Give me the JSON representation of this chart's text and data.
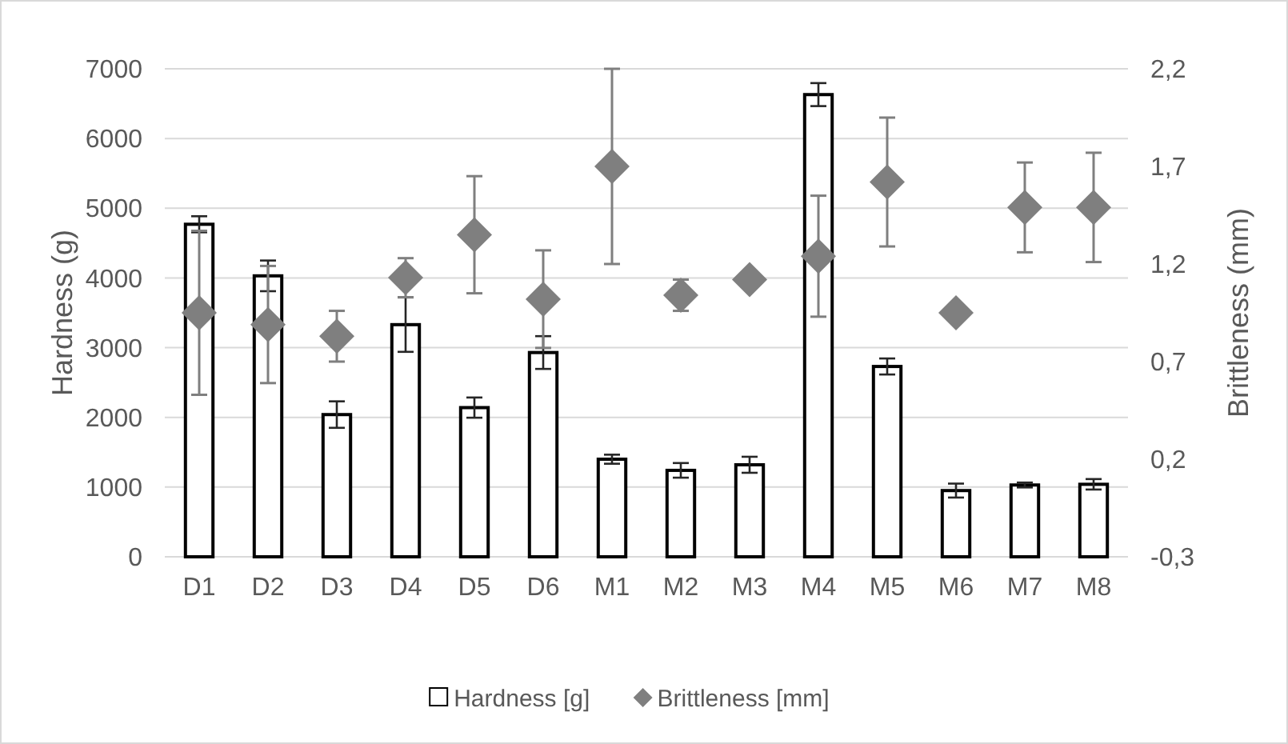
{
  "chart_data": {
    "type": "bar",
    "ylabel": "Hardness (g)",
    "y2label": "Brittleness (mm)",
    "categories": [
      "D1",
      "D2",
      "D3",
      "D4",
      "D5",
      "D6",
      "M1",
      "M2",
      "M3",
      "M4",
      "M5",
      "M6",
      "M7",
      "M8"
    ],
    "series": [
      {
        "name": "Hardness [g]",
        "color": "#ffffff",
        "values": [
          4770,
          4030,
          2040,
          3330,
          2140,
          2930,
          1400,
          1240,
          1320,
          6630,
          2730,
          950,
          1030,
          1040
        ],
        "errors": [
          115,
          220,
          190,
          390,
          145,
          235,
          65,
          105,
          115,
          165,
          115,
          100,
          35,
          75
        ]
      },
      {
        "name": "Brittleness [mm]",
        "type": "scatter",
        "axis": "y2",
        "color": "#7f7f7f",
        "values": [
          0.95,
          0.89,
          0.83,
          1.13,
          1.35,
          1.02,
          1.7,
          1.04,
          1.12,
          1.24,
          1.62,
          0.95,
          1.49,
          1.49
        ],
        "errors": [
          0.42,
          0.3,
          0.13,
          0.1,
          0.3,
          0.25,
          0.5,
          0.08,
          null,
          0.31,
          0.33,
          null,
          0.23,
          0.28
        ]
      }
    ],
    "ylim": [
      0,
      7000
    ],
    "yticks": [
      0,
      1000,
      2000,
      3000,
      4000,
      5000,
      6000,
      7000
    ],
    "y2lim": [
      -0.3,
      2.2
    ],
    "y2ticks": [
      {
        "value": -0.3,
        "label": "-0,3"
      },
      {
        "value": 0.2,
        "label": "0,2"
      },
      {
        "value": 0.7,
        "label": "0,7"
      },
      {
        "value": 1.2,
        "label": "1,2"
      },
      {
        "value": 1.7,
        "label": "1,7"
      },
      {
        "value": 2.2,
        "label": "2,2"
      }
    ],
    "grid": "y",
    "legend": "bottom",
    "marker": "diamond"
  }
}
